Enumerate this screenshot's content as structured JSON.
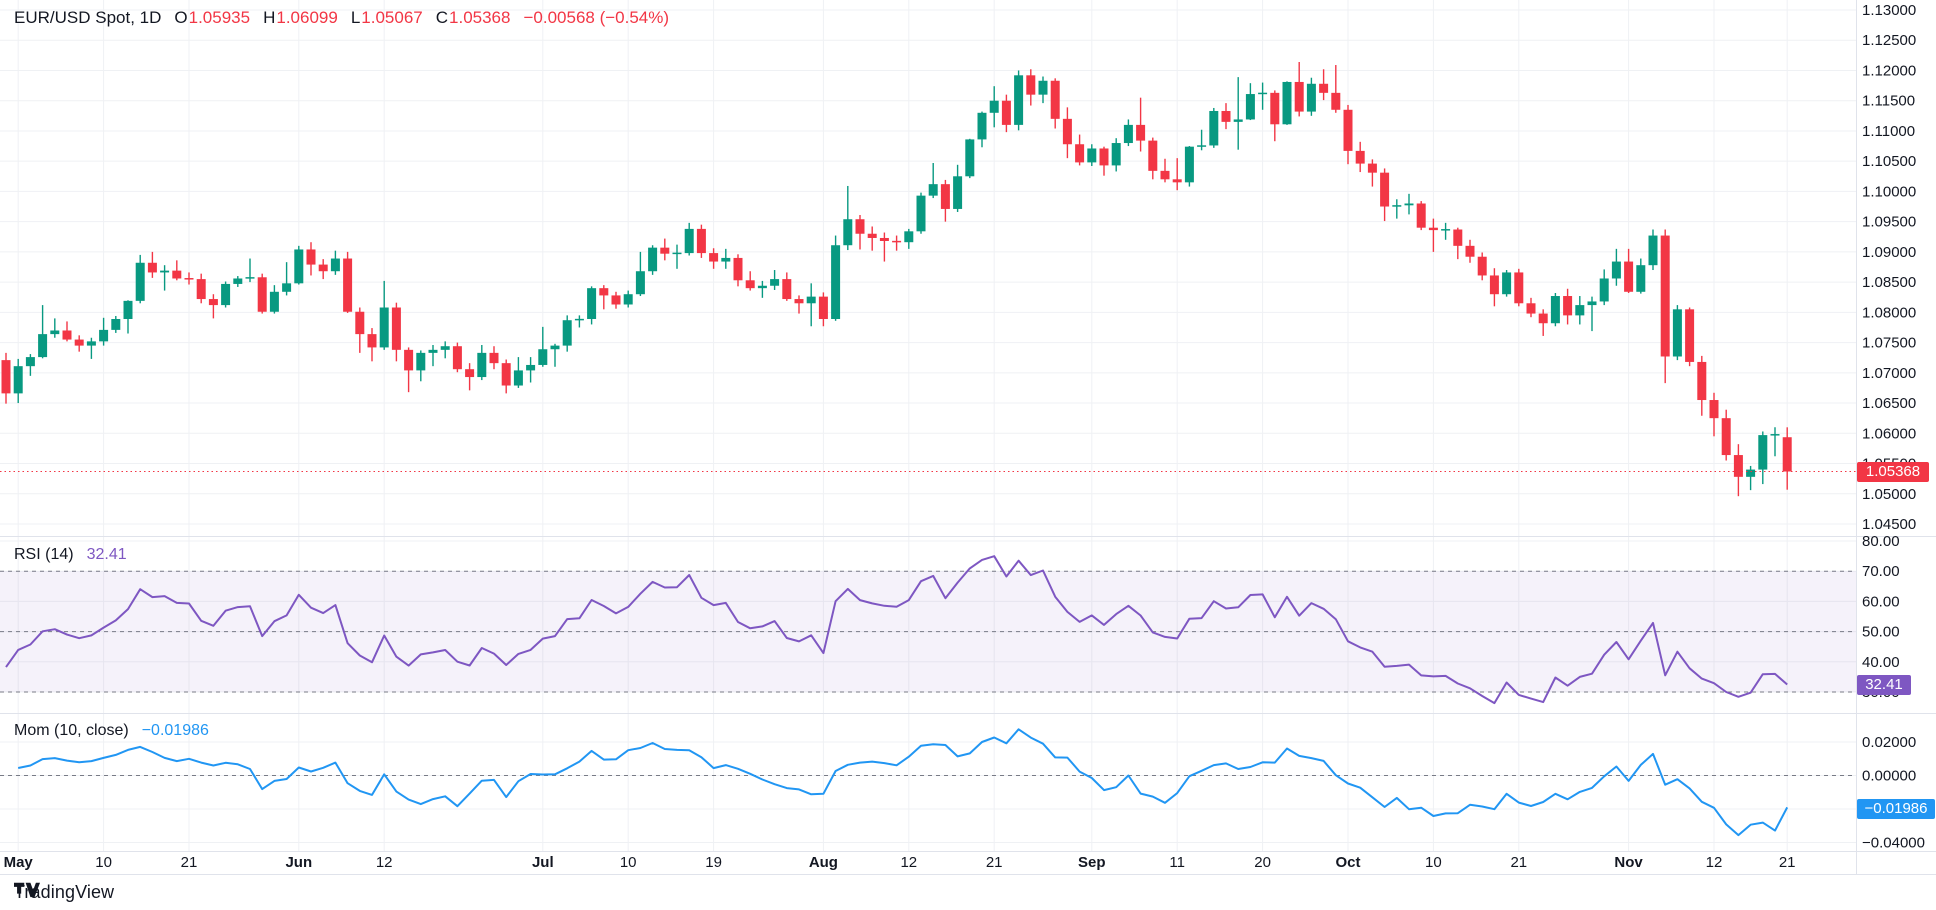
{
  "header": {
    "symbol": "EUR/USD Spot, 1D",
    "open_label": "O",
    "open": "1.05935",
    "high_label": "H",
    "high": "1.06099",
    "low_label": "L",
    "low": "1.05067",
    "close_label": "C",
    "close": "1.05368",
    "change": "−0.00568 (−0.54%)"
  },
  "colors": {
    "up": "#089981",
    "down": "#f23645",
    "rsi_line": "#7e57c2",
    "rsi_band_fill": "rgba(126,87,194,0.08)",
    "mom_line": "#2196f3",
    "grid": "#eff1f4",
    "separator": "#e0e3eb",
    "axis_text": "#131722",
    "dashed_level": "#787b86",
    "last_price": "#f23645"
  },
  "chart_data": {
    "type": "candlestick",
    "title": "EUR/USD Spot, 1D",
    "symbol": "EUR/USD Spot",
    "timeframe": "1D",
    "last_price": 1.05368,
    "price_axis": {
      "max": 1.13,
      "min": 1.045,
      "step": 0.005
    },
    "time_labels": [
      {
        "i": 1,
        "t": "May",
        "bold": true
      },
      {
        "i": 8,
        "t": "10",
        "bold": false
      },
      {
        "i": 15,
        "t": "21",
        "bold": false
      },
      {
        "i": 24,
        "t": "Jun",
        "bold": true
      },
      {
        "i": 31,
        "t": "12",
        "bold": false
      },
      {
        "i": 44,
        "t": "Jul",
        "bold": true
      },
      {
        "i": 51,
        "t": "10",
        "bold": false
      },
      {
        "i": 58,
        "t": "19",
        "bold": false
      },
      {
        "i": 67,
        "t": "Aug",
        "bold": true
      },
      {
        "i": 74,
        "t": "12",
        "bold": false
      },
      {
        "i": 81,
        "t": "21",
        "bold": false
      },
      {
        "i": 89,
        "t": "Sep",
        "bold": true
      },
      {
        "i": 96,
        "t": "11",
        "bold": false
      },
      {
        "i": 103,
        "t": "20",
        "bold": false
      },
      {
        "i": 110,
        "t": "Oct",
        "bold": true
      },
      {
        "i": 117,
        "t": "10",
        "bold": false
      },
      {
        "i": 124,
        "t": "21",
        "bold": false
      },
      {
        "i": 133,
        "t": "Nov",
        "bold": true
      },
      {
        "i": 140,
        "t": "12",
        "bold": false
      },
      {
        "i": 146,
        "t": "21",
        "bold": false
      }
    ],
    "candles": [
      [
        1.0721,
        1.0733,
        1.0649,
        1.0666
      ],
      [
        1.0666,
        1.0723,
        1.065,
        1.0711
      ],
      [
        1.0711,
        1.0731,
        1.0695,
        1.0726
      ],
      [
        1.0726,
        1.0812,
        1.0724,
        1.0764
      ],
      [
        1.0764,
        1.079,
        1.0758,
        1.077
      ],
      [
        1.077,
        1.0785,
        1.0752,
        1.0755
      ],
      [
        1.0755,
        1.0762,
        1.0735,
        1.0745
      ],
      [
        1.0745,
        1.0758,
        1.0723,
        1.0752
      ],
      [
        1.0752,
        1.0791,
        1.0745,
        1.0771
      ],
      [
        1.0771,
        1.0794,
        1.0766,
        1.0789
      ],
      [
        1.0789,
        1.082,
        1.0765,
        1.0819
      ],
      [
        1.0819,
        1.0895,
        1.0815,
        1.0882
      ],
      [
        1.0882,
        1.09,
        1.0857,
        1.0866
      ],
      [
        1.0866,
        1.0878,
        1.0836,
        1.0869
      ],
      [
        1.0869,
        1.0886,
        1.0853,
        1.0856
      ],
      [
        1.0856,
        1.0866,
        1.0846,
        1.0855
      ],
      [
        1.0855,
        1.0864,
        1.0815,
        1.0822
      ],
      [
        1.0822,
        1.083,
        1.079,
        1.0812
      ],
      [
        1.0812,
        1.0851,
        1.0808,
        1.0847
      ],
      [
        1.0847,
        1.086,
        1.0842,
        1.0856
      ],
      [
        1.0856,
        1.0889,
        1.085,
        1.0858
      ],
      [
        1.0858,
        1.0864,
        1.0798,
        1.0801
      ],
      [
        1.0801,
        1.0845,
        1.0798,
        1.0834
      ],
      [
        1.0834,
        1.0883,
        1.0828,
        1.0848
      ],
      [
        1.0848,
        1.091,
        1.0846,
        1.0904
      ],
      [
        1.0904,
        1.0916,
        1.0861,
        1.0879
      ],
      [
        1.0879,
        1.0888,
        1.0855,
        1.0868
      ],
      [
        1.0868,
        1.0902,
        1.0862,
        1.0889
      ],
      [
        1.0889,
        1.09,
        1.0799,
        1.0801
      ],
      [
        1.0801,
        1.0808,
        1.0733,
        1.0764
      ],
      [
        1.0764,
        1.0774,
        1.0719,
        1.0742
      ],
      [
        1.0742,
        1.0852,
        1.0738,
        1.0808
      ],
      [
        1.0808,
        1.0816,
        1.0719,
        1.0738
      ],
      [
        1.0738,
        1.0742,
        1.0668,
        1.0704
      ],
      [
        1.0704,
        1.0737,
        1.0686,
        1.0733
      ],
      [
        1.0733,
        1.0746,
        1.0711,
        1.0738
      ],
      [
        1.0738,
        1.0752,
        1.0724,
        1.0744
      ],
      [
        1.0744,
        1.075,
        1.0701,
        1.0706
      ],
      [
        1.0706,
        1.0716,
        1.0671,
        1.0693
      ],
      [
        1.0693,
        1.0746,
        1.0688,
        1.0733
      ],
      [
        1.0733,
        1.0744,
        1.0706,
        1.0716
      ],
      [
        1.0716,
        1.0722,
        1.0666,
        1.0679
      ],
      [
        1.0679,
        1.0726,
        1.0675,
        1.0704
      ],
      [
        1.0704,
        1.0726,
        1.0684,
        1.0713
      ],
      [
        1.0713,
        1.0776,
        1.071,
        1.0739
      ],
      [
        1.0739,
        1.0748,
        1.071,
        1.0745
      ],
      [
        1.0745,
        1.0795,
        1.0735,
        1.0787
      ],
      [
        1.0787,
        1.0795,
        1.0775,
        1.0789
      ],
      [
        1.0789,
        1.0843,
        1.078,
        1.084
      ],
      [
        1.084,
        1.0845,
        1.0805,
        1.0828
      ],
      [
        1.0828,
        1.0834,
        1.0806,
        1.0813
      ],
      [
        1.0813,
        1.0836,
        1.0808,
        1.083
      ],
      [
        1.083,
        1.09,
        1.0827,
        1.0868
      ],
      [
        1.0868,
        1.0911,
        1.0862,
        1.0907
      ],
      [
        1.0907,
        1.0922,
        1.0886,
        1.0897
      ],
      [
        1.0897,
        1.0912,
        1.0872,
        1.0898
      ],
      [
        1.0898,
        1.0948,
        1.0894,
        1.0938
      ],
      [
        1.0938,
        1.0945,
        1.089,
        1.0898
      ],
      [
        1.0898,
        1.0906,
        1.0872,
        1.0884
      ],
      [
        1.0884,
        1.0905,
        1.0872,
        1.089
      ],
      [
        1.089,
        1.0896,
        1.0843,
        1.0853
      ],
      [
        1.0853,
        1.0868,
        1.0836,
        1.084
      ],
      [
        1.084,
        1.0852,
        1.0824,
        1.0844
      ],
      [
        1.0844,
        1.087,
        1.0837,
        1.0855
      ],
      [
        1.0855,
        1.0866,
        1.0819,
        1.0822
      ],
      [
        1.0822,
        1.0828,
        1.0798,
        1.0815
      ],
      [
        1.0815,
        1.0848,
        1.0777,
        1.0826
      ],
      [
        1.0826,
        1.0833,
        1.0777,
        1.0789
      ],
      [
        1.0789,
        1.0927,
        1.0786,
        1.0911
      ],
      [
        1.0911,
        1.1009,
        1.0903,
        1.0954
      ],
      [
        1.0954,
        1.0961,
        1.0904,
        1.093
      ],
      [
        1.093,
        1.0942,
        1.0902,
        1.0923
      ],
      [
        1.0923,
        1.0932,
        1.0884,
        1.0918
      ],
      [
        1.0918,
        1.0927,
        1.0902,
        1.0916
      ],
      [
        1.0916,
        1.0938,
        1.0905,
        1.0934
      ],
      [
        1.0934,
        1.0998,
        1.093,
        1.0993
      ],
      [
        1.0993,
        1.1047,
        1.0989,
        1.1012
      ],
      [
        1.1012,
        1.1019,
        1.095,
        1.0971
      ],
      [
        1.0971,
        1.1044,
        1.0966,
        1.1025
      ],
      [
        1.1025,
        1.1087,
        1.1022,
        1.1086
      ],
      [
        1.1086,
        1.1132,
        1.1073,
        1.113
      ],
      [
        1.113,
        1.1174,
        1.1106,
        1.115
      ],
      [
        1.115,
        1.116,
        1.1098,
        1.111
      ],
      [
        1.111,
        1.12,
        1.1101,
        1.1192
      ],
      [
        1.1192,
        1.1202,
        1.1142,
        1.116
      ],
      [
        1.116,
        1.119,
        1.1146,
        1.1183
      ],
      [
        1.1183,
        1.1187,
        1.1104,
        1.112
      ],
      [
        1.112,
        1.1139,
        1.1055,
        1.1078
      ],
      [
        1.1078,
        1.1094,
        1.1043,
        1.1048
      ],
      [
        1.1048,
        1.1078,
        1.1042,
        1.1071
      ],
      [
        1.1071,
        1.1074,
        1.1026,
        1.1043
      ],
      [
        1.1043,
        1.1088,
        1.1033,
        1.108
      ],
      [
        1.108,
        1.1119,
        1.1075,
        1.111
      ],
      [
        1.111,
        1.1155,
        1.1066,
        1.1084
      ],
      [
        1.1084,
        1.1089,
        1.102,
        1.1034
      ],
      [
        1.1034,
        1.1054,
        1.1015,
        1.102
      ],
      [
        1.102,
        1.1055,
        1.1002,
        1.1015
      ],
      [
        1.1015,
        1.1075,
        1.1008,
        1.1074
      ],
      [
        1.1074,
        1.1102,
        1.1068,
        1.1076
      ],
      [
        1.1076,
        1.1138,
        1.1072,
        1.1133
      ],
      [
        1.1133,
        1.1146,
        1.1103,
        1.1115
      ],
      [
        1.1115,
        1.1189,
        1.1069,
        1.1119
      ],
      [
        1.1119,
        1.1179,
        1.1118,
        1.1161
      ],
      [
        1.1161,
        1.118,
        1.1135,
        1.1163
      ],
      [
        1.1163,
        1.1167,
        1.1083,
        1.1111
      ],
      [
        1.1111,
        1.1182,
        1.111,
        1.1181
      ],
      [
        1.1181,
        1.1214,
        1.1124,
        1.1132
      ],
      [
        1.1132,
        1.1188,
        1.1125,
        1.1178
      ],
      [
        1.1178,
        1.1202,
        1.1151,
        1.1163
      ],
      [
        1.1163,
        1.1209,
        1.113,
        1.1135
      ],
      [
        1.1135,
        1.1143,
        1.1045,
        1.1067
      ],
      [
        1.1067,
        1.1082,
        1.1032,
        1.1046
      ],
      [
        1.1046,
        1.1053,
        1.1008,
        1.1031
      ],
      [
        1.1031,
        1.1038,
        1.0951,
        1.0975
      ],
      [
        1.0975,
        1.0987,
        1.0955,
        1.0977
      ],
      [
        1.0977,
        1.0996,
        1.0962,
        1.098
      ],
      [
        1.098,
        1.0984,
        1.0936,
        1.094
      ],
      [
        1.094,
        1.0955,
        1.09,
        1.0936
      ],
      [
        1.0936,
        1.0948,
        1.092,
        1.0937
      ],
      [
        1.0937,
        1.094,
        1.0888,
        1.091
      ],
      [
        1.091,
        1.092,
        1.0882,
        1.0892
      ],
      [
        1.0892,
        1.0899,
        1.0853,
        1.0861
      ],
      [
        1.0861,
        1.0873,
        1.081,
        1.083
      ],
      [
        1.083,
        1.087,
        1.0826,
        1.0866
      ],
      [
        1.0866,
        1.0872,
        1.081,
        1.0815
      ],
      [
        1.0815,
        1.0824,
        1.0792,
        1.0798
      ],
      [
        1.0798,
        1.0805,
        1.0761,
        1.0782
      ],
      [
        1.0782,
        1.0832,
        1.0777,
        1.0827
      ],
      [
        1.0827,
        1.0839,
        1.078,
        1.0795
      ],
      [
        1.0795,
        1.0827,
        1.078,
        1.0812
      ],
      [
        1.0812,
        1.0826,
        1.0769,
        1.0818
      ],
      [
        1.0818,
        1.0871,
        1.0812,
        1.0856
      ],
      [
        1.0856,
        1.0905,
        1.0844,
        1.0884
      ],
      [
        1.0884,
        1.0905,
        1.0832,
        1.0834
      ],
      [
        1.0834,
        1.0889,
        1.0831,
        1.0878
      ],
      [
        1.0878,
        1.0937,
        1.087,
        1.0927
      ],
      [
        1.0927,
        1.0937,
        1.0683,
        1.0727
      ],
      [
        1.0727,
        1.0812,
        1.0721,
        1.0805
      ],
      [
        1.0805,
        1.0808,
        1.0711,
        1.0718
      ],
      [
        1.0718,
        1.0728,
        1.0629,
        1.0655
      ],
      [
        1.0655,
        1.0667,
        1.0595,
        1.0625
      ],
      [
        1.0625,
        1.0639,
        1.0555,
        1.0564
      ],
      [
        1.0564,
        1.0582,
        1.0496,
        1.0528
      ],
      [
        1.0528,
        1.0546,
        1.0506,
        1.054
      ],
      [
        1.054,
        1.0603,
        1.0516,
        1.0597
      ],
      [
        1.0597,
        1.061,
        1.0562,
        1.0598
      ],
      [
        1.05935,
        1.06099,
        1.05067,
        1.05368
      ]
    ],
    "panes": {
      "rsi": {
        "label": "RSI (14)",
        "period": 14,
        "value": "32.41",
        "value_num": 32.41,
        "axis_levels": [
          80,
          70,
          60,
          50,
          40,
          30
        ],
        "dashed_levels": [
          70,
          50,
          30
        ],
        "band": [
          30,
          70
        ]
      },
      "momentum": {
        "label": "Mom (10, close)",
        "period": 10,
        "value": "−0.01986",
        "value_num": -0.01986,
        "axis_levels": [
          {
            "v": 0.02,
            "t": "0.02000"
          },
          {
            "v": 0,
            "t": "0.00000"
          },
          {
            "v": -0.02,
            "t": "−0.02000"
          },
          {
            "v": -0.04,
            "t": "−0.04000"
          }
        ],
        "dashed_levels": [
          0
        ]
      }
    },
    "legend_position": "top-left",
    "grid": true
  },
  "tags": {
    "price": "1.05368",
    "rsi": "32.41",
    "momentum": "−0.01986"
  },
  "footer": {
    "brand": "TradingView"
  }
}
